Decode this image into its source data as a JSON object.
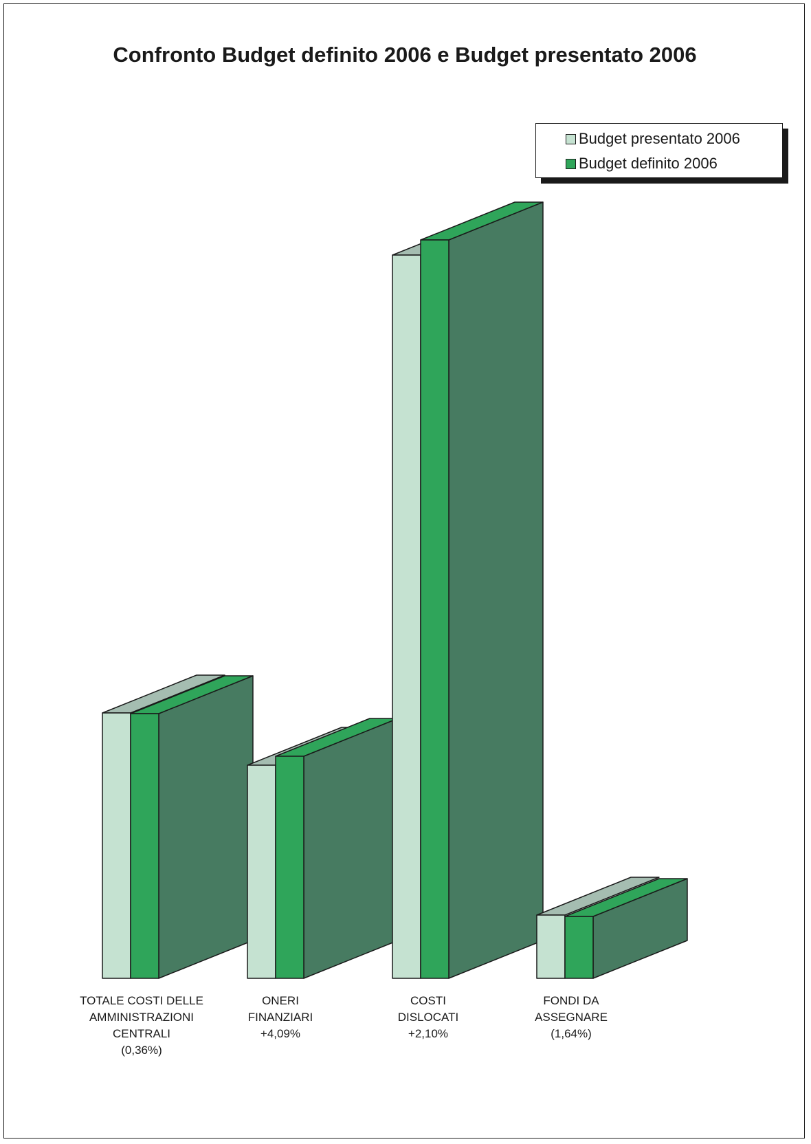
{
  "chart_data": {
    "type": "bar",
    "title": "Confronto Budget definito 2006 e Budget presentato 2006",
    "xlabel": "",
    "ylabel": "",
    "grid": false,
    "three_d": true,
    "legend_placement": "top-right",
    "categories": [
      [
        "TOTALE COSTI DELLE",
        "AMMINISTRAZIONI",
        "CENTRALI",
        "(0,36%)"
      ],
      [
        "ONERI",
        "FINANZIARI",
        "+4,09%"
      ],
      [
        "COSTI",
        "DISLOCATI",
        "+2,10%"
      ],
      [
        "FONDI DA",
        "ASSEGNARE",
        "(1,64%)"
      ]
    ],
    "series": [
      {
        "name": "Budget presentato 2006",
        "color": "#c5e2d1",
        "values": [
          386,
          310,
          1052,
          92
        ]
      },
      {
        "name": "Budget definito 2006",
        "color": "#2fa55a",
        "values": [
          385,
          323,
          1074,
          90
        ]
      }
    ],
    "ylim": [
      0,
      1100
    ],
    "side_color": "#477b61",
    "top_color_light": "#a5bdb1"
  }
}
